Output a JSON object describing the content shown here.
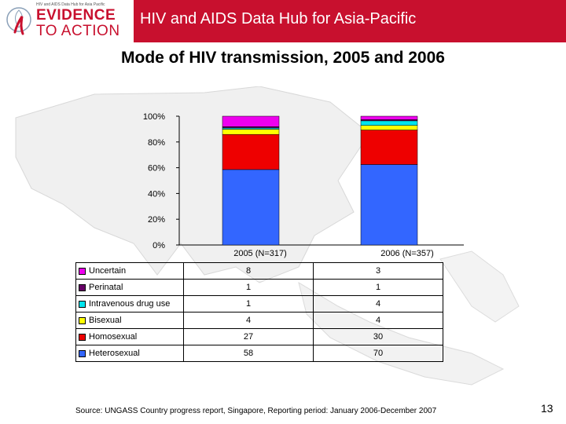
{
  "header": {
    "logo_tagline": "HIV and AIDS Data Hub for Asia Pacific",
    "logo_line1": "EVIDENCE",
    "logo_line2": "TO ACTION",
    "title": "HIV and AIDS Data Hub for Asia-Pacific",
    "logo_color": "#c8102e",
    "banner_color": "#c8102e"
  },
  "slide_title": "Mode of HIV transmission, 2005 and 2006",
  "chart_data": {
    "type": "bar",
    "stacked": "percent",
    "categories": [
      "2005 (N=317)",
      "2006 (N=357)"
    ],
    "y_ticks": [
      "0%",
      "20%",
      "40%",
      "60%",
      "80%",
      "100%"
    ],
    "ylim": [
      0,
      100
    ],
    "series": [
      {
        "name": "Heterosexual",
        "color": "#3366ff",
        "values": [
          58,
          70
        ]
      },
      {
        "name": "Homosexual",
        "color": "#ee0000",
        "values": [
          27,
          30
        ]
      },
      {
        "name": "Bisexual",
        "color": "#ffff00",
        "values": [
          4,
          4
        ]
      },
      {
        "name": "Intravenous drug use",
        "color": "#00e5ee",
        "values": [
          1,
          4
        ]
      },
      {
        "name": "Perinatal",
        "color": "#660066",
        "values": [
          1,
          1
        ]
      },
      {
        "name": "Uncertain",
        "color": "#ee00ee",
        "values": [
          8,
          3
        ]
      }
    ],
    "legend_rows_order": [
      "Uncertain",
      "Perinatal",
      "Intravenous drug use",
      "Bisexual",
      "Homosexual",
      "Heterosexual"
    ]
  },
  "source": "Source: UNGASS Country progress report, Singapore, Reporting period: January 2006-December 2007",
  "page_number": "13"
}
